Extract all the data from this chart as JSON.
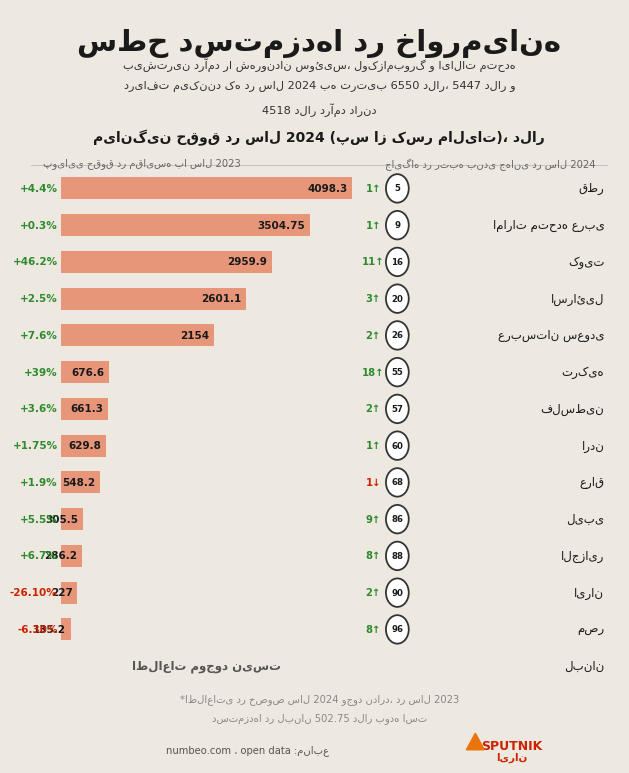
{
  "title": "سطح دستمزدها در خاورمیانه",
  "subtitle_lines": [
    "بیشترین درآمد را شهروندان سوئیس، لوکزامبورگ و ایالات متحده",
    "دریافت می‌کنند که در سال 2024 به ترتیب 6550 دلار، 5447 دلار و",
    "4518 دلار درآمد دارند"
  ],
  "chart_title": "میانگین حقوق در سال 2024 (پس از کسر مالیات)، دلار",
  "left_col_header": "جایگاه در رتبه بندی جهانی در سال 2024",
  "right_col_header": "پویایی حقوق در مقایسه با سال 2023",
  "countries": [
    "قطر",
    "امارات متحده عربی",
    "کویت",
    "اسرائیل",
    "عربستان سعودی",
    "ترکیه",
    "فلسطین",
    "اردن",
    "عراق",
    "لیبی",
    "الجزایر",
    "ایران",
    "مصر",
    "لبنان"
  ],
  "ranks": [
    5,
    9,
    16,
    20,
    26,
    55,
    57,
    60,
    68,
    86,
    88,
    90,
    96,
    null
  ],
  "rank_changes": [
    1,
    1,
    11,
    3,
    2,
    18,
    2,
    1,
    -1,
    9,
    8,
    2,
    8,
    null
  ],
  "values": [
    4098.3,
    3504.75,
    2959.9,
    2601.1,
    2154,
    676.6,
    661.3,
    629.8,
    548.2,
    305.5,
    286.2,
    227,
    135.2,
    null
  ],
  "pct_changes": [
    "+4.4%",
    "+0.3%",
    "+46.2%",
    "+2.5%",
    "+7.6%",
    "+39%",
    "+3.6%",
    "+1.75%",
    "+1.9%",
    "+5.5%",
    "+6.7%",
    "-26.10%",
    "-6.30%",
    null
  ],
  "pct_positive": [
    true,
    true,
    true,
    true,
    true,
    true,
    true,
    true,
    true,
    true,
    true,
    false,
    false,
    null
  ],
  "no_data_label": "اطلاعات موجود نیست",
  "bar_color": "#E8967A",
  "bg_color": "#EDE8E0",
  "title_color": "#1a1a1a",
  "green_color": "#2E8B2E",
  "red_color": "#CC2200",
  "footnote_lines": [
    "*اطلاعاتی در خصوص سال 2024 وجود ندارد، در سال 2023",
    "دستمزدها در لبنان 502.75 دلار بوده است"
  ],
  "source_text": "numbeo.com ، open data :منابع",
  "max_bar_width": 4098.3
}
